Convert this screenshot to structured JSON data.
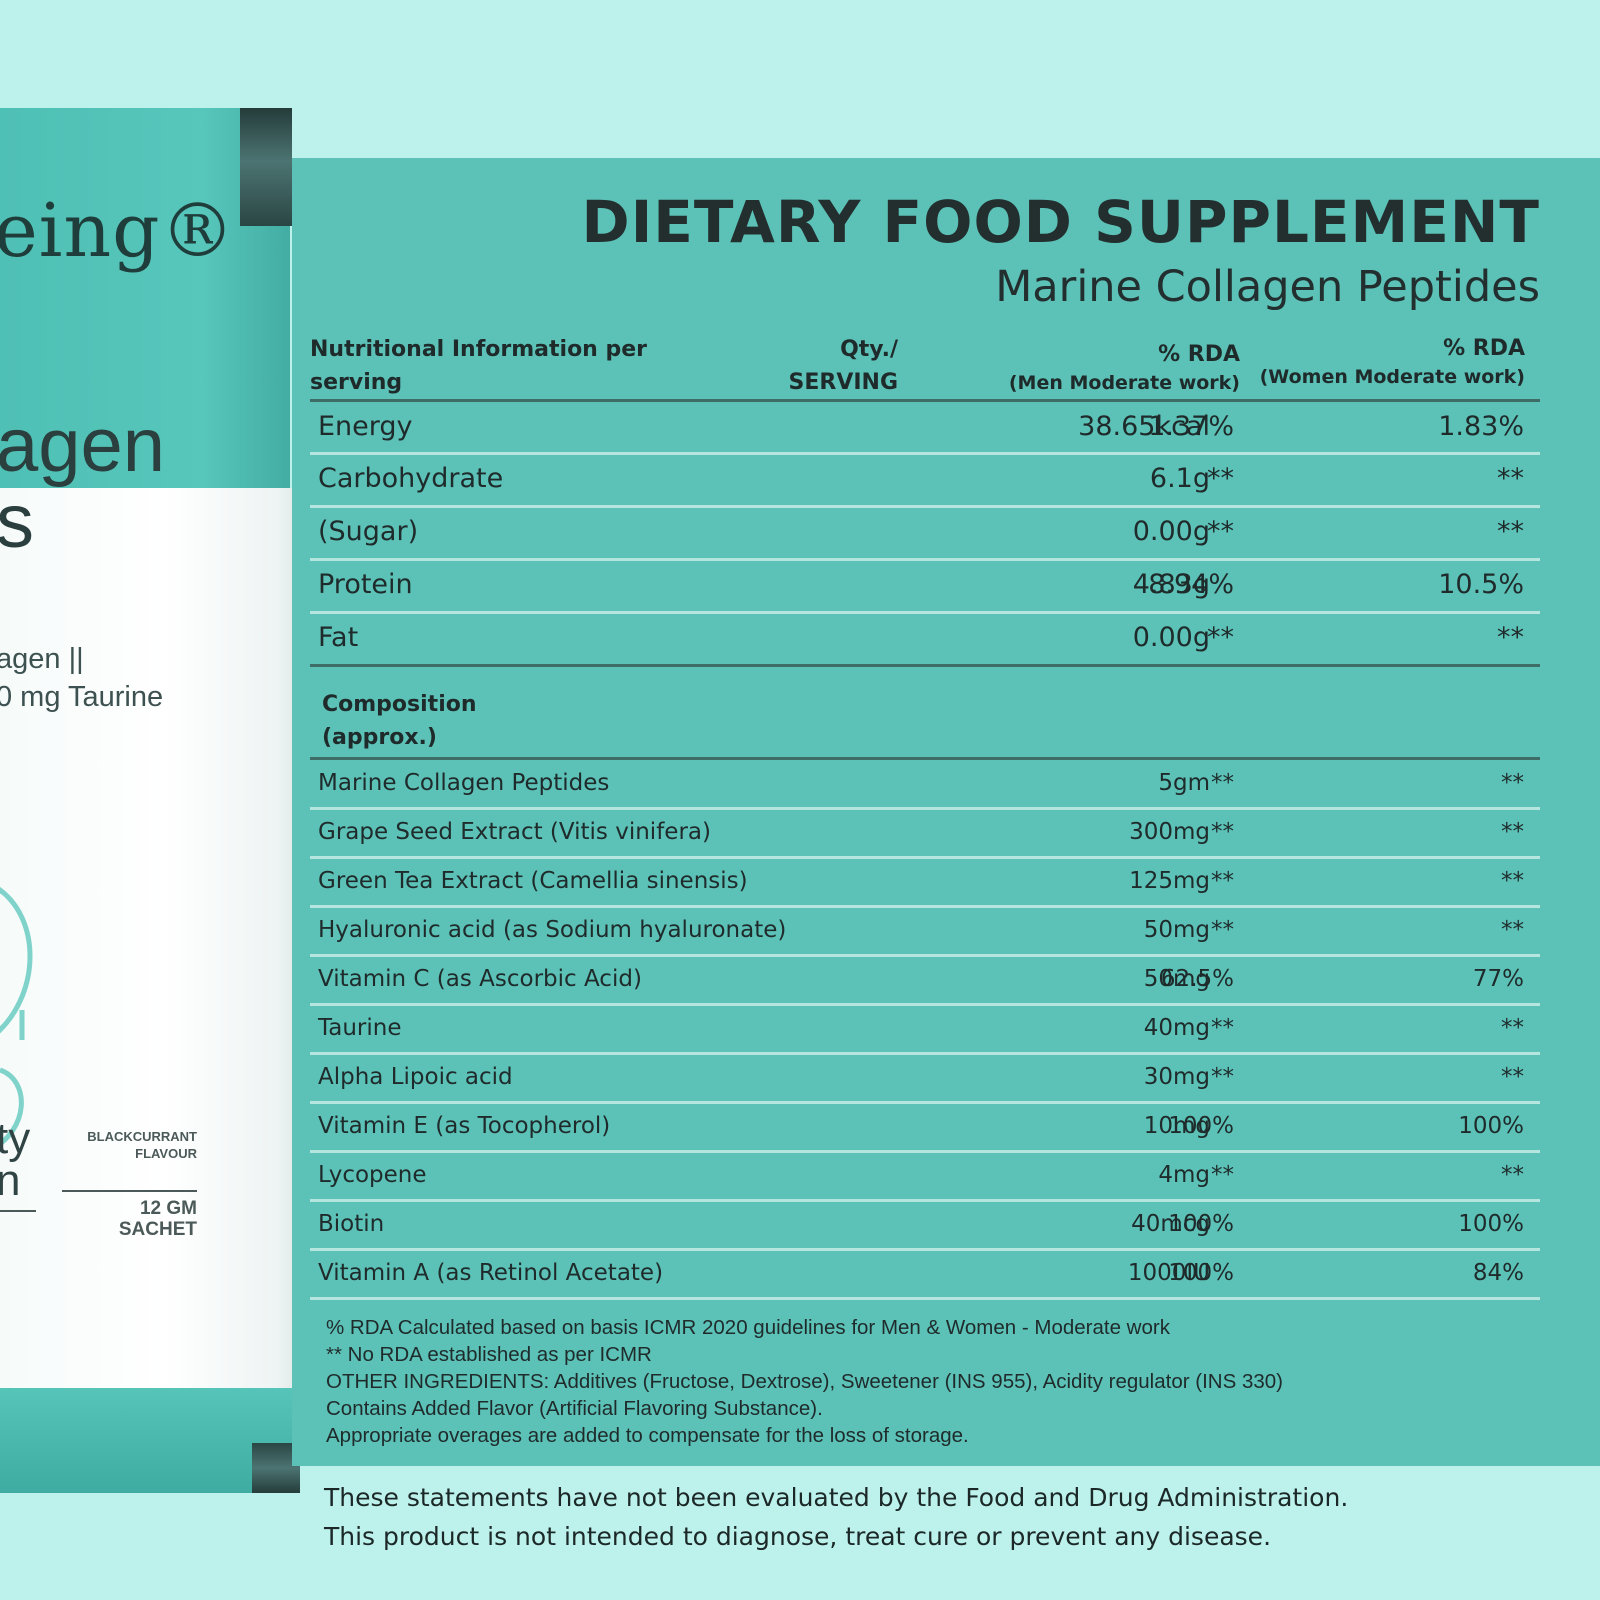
{
  "sachet": {
    "brand": "eing®",
    "product_name": "agen\ns",
    "product_sub": "agen ||\n0 mg Taurine",
    "tag": "ty\nn",
    "flavour": "BLACKCURRANT\nFLAVOUR",
    "size": "12 GM\nSACHET",
    "icon": "leaf-icon"
  },
  "header": {
    "title": "DIETARY FOOD SUPPLEMENT",
    "subtitle": "Marine Collagen Peptides"
  },
  "table_headers": {
    "nutrition": "Nutritional Information per serving",
    "qty_line1": "Qty./",
    "qty_line2": "SERVING",
    "men_line1": "% RDA",
    "men_line2": "(Men Moderate work)",
    "women_line1": "% RDA",
    "women_line2": "(Women Moderate work)"
  },
  "nutrition_rows": [
    {
      "name": "Energy",
      "qty": "38.65kcal",
      "men": "1.37%",
      "women": "1.83%"
    },
    {
      "name": "Carbohydrate",
      "qty": "6.1g",
      "men": "**",
      "women": "**"
    },
    {
      "name": "(Sugar)",
      "qty": "0.00g",
      "men": "**",
      "women": "**"
    },
    {
      "name": "Protein",
      "qty": "4.83g",
      "men": "8.94%",
      "women": "10.5%"
    },
    {
      "name": "Fat",
      "qty": "0.00g",
      "men": "**",
      "women": "**"
    }
  ],
  "composition_title": "Composition (approx.)",
  "composition_rows": [
    {
      "name": "Marine Collagen Peptides",
      "qty": "5gm",
      "men": "**",
      "women": "**"
    },
    {
      "name": "Grape Seed Extract (Vitis vinifera)",
      "qty": "300mg",
      "men": "**",
      "women": "**"
    },
    {
      "name": "Green Tea Extract (Camellia sinensis)",
      "qty": "125mg",
      "men": "**",
      "women": "**"
    },
    {
      "name": "Hyaluronic acid (as Sodium hyaluronate)",
      "qty": "50mg",
      "men": "**",
      "women": "**"
    },
    {
      "name": "Vitamin C (as Ascorbic Acid)",
      "qty": "50mg",
      "men": "62.5%",
      "women": "77%"
    },
    {
      "name": "Taurine",
      "qty": "40mg",
      "men": "**",
      "women": "**"
    },
    {
      "name": "Alpha Lipoic acid",
      "qty": "30mg",
      "men": "**",
      "women": "**"
    },
    {
      "name": "Vitamin E (as Tocopherol)",
      "qty": "10mg",
      "men": "100%",
      "women": "100%"
    },
    {
      "name": "Lycopene",
      "qty": "4mg",
      "men": "**",
      "women": "**"
    },
    {
      "name": "Biotin",
      "qty": "40mcg",
      "men": "100%",
      "women": "100%"
    },
    {
      "name": "Vitamin A (as Retinol Acetate)",
      "qty": "1000IU",
      "men": "100%",
      "women": "84%"
    }
  ],
  "footnotes": [
    "% RDA Calculated based on basis ICMR 2020 guidelines for Men & Women - Moderate work",
    "** No RDA established as per ICMR",
    "OTHER INGREDIENTS: Additives (Fructose, Dextrose), Sweetener (INS 955), Acidity regulator (INS 330)",
    "Contains Added Flavor (Artificial Flavoring Substance).",
    "Appropriate overages are added to compensate for the loss of storage."
  ],
  "disclaimer": [
    "These statements have not been evaluated by the Food and Drug Administration.",
    "This product is not intended to diagnose, treat cure or prevent any disease."
  ],
  "colors": {
    "page_bg": "#bdf2ec",
    "panel_bg": "#5cc1b7",
    "text": "#1f2b2b"
  }
}
